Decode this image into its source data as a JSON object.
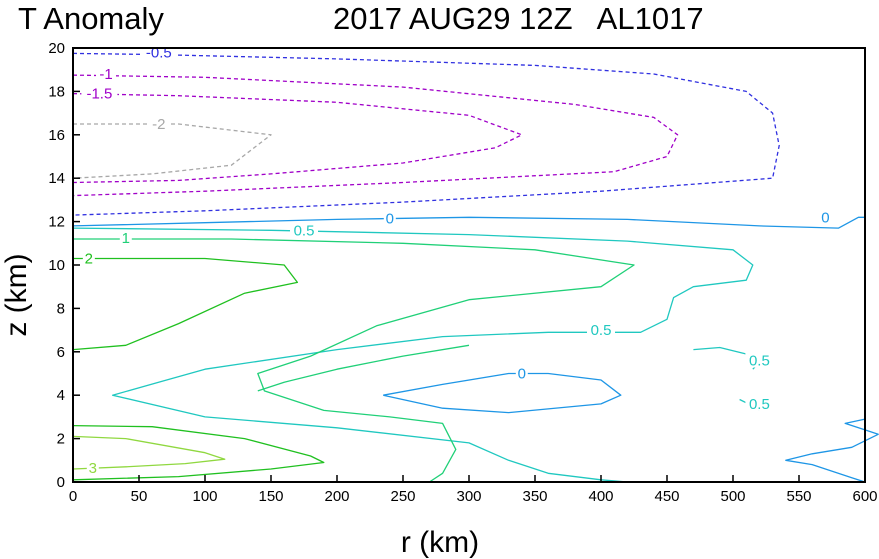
{
  "chart_data": {
    "type": "contour",
    "title_left": "T Anomaly",
    "title_right": "2017 AUG29 12Z   AL1017",
    "xlabel": "r (km)",
    "ylabel": "z (km)",
    "xlim": [
      0,
      600
    ],
    "ylim": [
      0,
      20
    ],
    "xticks": [
      "0",
      "50",
      "100",
      "150",
      "200",
      "250",
      "300",
      "350",
      "400",
      "450",
      "500",
      "550",
      "600"
    ],
    "yticks": [
      "0",
      "2",
      "4",
      "6",
      "8",
      "10",
      "12",
      "14",
      "16",
      "18",
      "20"
    ],
    "colors": {
      "neg0_5": "#3030e0",
      "neg1": "#a000c8",
      "neg1_5": "#a000c8",
      "neg2": "#a8a8a8",
      "zero": "#1e96e6",
      "pos0_5": "#20c8c0",
      "pos1": "#20d078",
      "pos2": "#20c020",
      "pos3": "#90d840"
    },
    "contours": [
      {
        "level": -0.5,
        "label": "-0.5",
        "color": "neg0_5",
        "dashed": true,
        "segments": [
          [
            [
              0,
              19.75
            ],
            [
              60,
              19.7
            ],
            [
              200,
              19.5
            ],
            [
              350,
              19.2
            ],
            [
              440,
              18.8
            ],
            [
              510,
              18
            ],
            [
              530,
              17
            ],
            [
              535,
              15.5
            ],
            [
              530,
              14
            ],
            [
              400,
              13.4
            ],
            [
              250,
              12.9
            ],
            [
              100,
              12.5
            ],
            [
              0,
              12.3
            ]
          ]
        ],
        "labels": [
          [
            65,
            19.8
          ]
        ]
      },
      {
        "level": -1,
        "label": "-1",
        "color": "neg1",
        "dashed": true,
        "segments": [
          [
            [
              0,
              18.75
            ],
            [
              100,
              18.65
            ],
            [
              250,
              18.2
            ],
            [
              380,
              17.4
            ],
            [
              440,
              16.8
            ],
            [
              458,
              16
            ],
            [
              450,
              15
            ],
            [
              410,
              14.3
            ],
            [
              250,
              13.8
            ],
            [
              100,
              13.4
            ],
            [
              0,
              13.2
            ]
          ]
        ],
        "labels": [
          [
            25,
            18.8
          ]
        ]
      },
      {
        "level": -1.5,
        "label": "-1.5",
        "color": "neg1_5",
        "dashed": true,
        "segments": [
          [
            [
              0,
              17.9
            ],
            [
              80,
              17.8
            ],
            [
              200,
              17.5
            ],
            [
              300,
              16.9
            ],
            [
              340,
              16
            ],
            [
              320,
              15.4
            ],
            [
              250,
              14.7
            ],
            [
              150,
              14.2
            ],
            [
              80,
              13.9
            ],
            [
              0,
              13.8
            ]
          ]
        ],
        "labels": [
          [
            20,
            17.9
          ]
        ]
      },
      {
        "level": -2,
        "label": "-2",
        "color": "neg2",
        "dashed": true,
        "segments": [
          [
            [
              0,
              16.5
            ],
            [
              80,
              16.5
            ],
            [
              150,
              16
            ],
            [
              135,
              15.3
            ],
            [
              120,
              14.6
            ],
            [
              60,
              14.2
            ],
            [
              0,
              14
            ]
          ]
        ],
        "labels": [
          [
            65,
            16.5
          ]
        ]
      },
      {
        "level": 0,
        "label": "0",
        "color": "zero",
        "dashed": false,
        "segments": [
          [
            [
              0,
              11.8
            ],
            [
              100,
              11.95
            ],
            [
              200,
              12.1
            ],
            [
              300,
              12.2
            ],
            [
              420,
              12.1
            ],
            [
              520,
              11.8
            ],
            [
              580,
              11.7
            ],
            [
              595,
              12.2
            ],
            [
              600,
              12.2
            ]
          ],
          [
            [
              235,
              4
            ],
            [
              280,
              4.5
            ],
            [
              330,
              5
            ],
            [
              360,
              5
            ],
            [
              400,
              4.7
            ],
            [
              415,
              4
            ],
            [
              400,
              3.6
            ],
            [
              330,
              3.2
            ],
            [
              280,
              3.4
            ],
            [
              235,
              4
            ]
          ],
          [
            [
              600,
              0
            ],
            [
              590,
              0.2
            ],
            [
              560,
              0.8
            ],
            [
              540,
              1
            ],
            [
              560,
              1.3
            ],
            [
              590,
              1.6
            ],
            [
              610,
              2.2
            ],
            [
              600,
              2.4
            ],
            [
              585,
              2.7
            ],
            [
              600,
              2.9
            ]
          ]
        ],
        "labels": [
          [
            240,
            12.15
          ],
          [
            570,
            12.2
          ],
          [
            340,
            5
          ]
        ]
      },
      {
        "level": 0.5,
        "label": "0.5",
        "color": "pos0_5",
        "dashed": false,
        "segments": [
          [
            [
              0,
              11.7
            ],
            [
              150,
              11.6
            ],
            [
              300,
              11.4
            ],
            [
              420,
              11.1
            ],
            [
              500,
              10.7
            ],
            [
              515,
              10
            ],
            [
              510,
              9.3
            ],
            [
              470,
              9
            ],
            [
              455,
              8.5
            ],
            [
              450,
              7.5
            ],
            [
              430,
              6.9
            ],
            [
              360,
              6.9
            ],
            [
              280,
              6.7
            ],
            [
              200,
              6.1
            ],
            [
              100,
              5.2
            ],
            [
              30,
              4
            ],
            [
              100,
              3
            ],
            [
              200,
              2.5
            ],
            [
              300,
              1.8
            ],
            [
              330,
              1
            ],
            [
              360,
              0.4
            ],
            [
              400,
              0.1
            ],
            [
              420,
              0
            ]
          ],
          [
            [
              470,
              6.1
            ],
            [
              490,
              6.2
            ],
            [
              510,
              5.9
            ],
            [
              520,
              5.5
            ],
            [
              515,
              5.2
            ]
          ],
          [
            [
              505,
              3.8
            ],
            [
              515,
              3.5
            ],
            [
              520,
              3.3
            ]
          ]
        ],
        "labels": [
          [
            175,
            11.6
          ],
          [
            400,
            7.0
          ],
          [
            520,
            5.6
          ],
          [
            520,
            3.6
          ]
        ]
      },
      {
        "level": 1,
        "label": "1",
        "color": "pos1",
        "dashed": false,
        "segments": [
          [
            [
              0,
              11.2
            ],
            [
              120,
              11.2
            ],
            [
              250,
              11
            ],
            [
              350,
              10.7
            ],
            [
              425,
              10
            ],
            [
              400,
              9
            ],
            [
              300,
              8.4
            ],
            [
              230,
              7.2
            ],
            [
              180,
              5.8
            ],
            [
              140,
              5
            ],
            [
              145,
              4.2
            ],
            [
              190,
              3.3
            ],
            [
              240,
              3.0
            ],
            [
              280,
              2.7
            ],
            [
              290,
              1.5
            ],
            [
              280,
              0.4
            ],
            [
              270,
              0
            ]
          ],
          [
            [
              140,
              4.2
            ],
            [
              160,
              4.6
            ],
            [
              200,
              5.2
            ],
            [
              250,
              5.8
            ],
            [
              300,
              6.3
            ]
          ]
        ],
        "labels": [
          [
            40,
            11.25
          ]
        ]
      },
      {
        "level": 2,
        "label": "2",
        "color": "pos2",
        "dashed": false,
        "segments": [
          [
            [
              0,
              10.3
            ],
            [
              100,
              10.3
            ],
            [
              160,
              10
            ],
            [
              170,
              9.2
            ],
            [
              130,
              8.7
            ],
            [
              80,
              7.3
            ],
            [
              40,
              6.3
            ],
            [
              0,
              6.1
            ]
          ],
          [
            [
              0,
              2.6
            ],
            [
              60,
              2.55
            ],
            [
              130,
              2
            ],
            [
              180,
              1.2
            ],
            [
              190,
              0.9
            ],
            [
              150,
              0.6
            ],
            [
              80,
              0.25
            ],
            [
              0,
              0.1
            ]
          ]
        ],
        "labels": [
          [
            12,
            10.3
          ]
        ]
      },
      {
        "level": 3,
        "label": "3",
        "color": "pos3",
        "dashed": false,
        "segments": [
          [
            [
              0,
              2.1
            ],
            [
              40,
              2
            ],
            [
              100,
              1.35
            ],
            [
              115,
              1.05
            ],
            [
              85,
              0.85
            ],
            [
              40,
              0.7
            ],
            [
              0,
              0.6
            ]
          ]
        ],
        "labels": [
          [
            15,
            0.65
          ]
        ]
      }
    ]
  }
}
